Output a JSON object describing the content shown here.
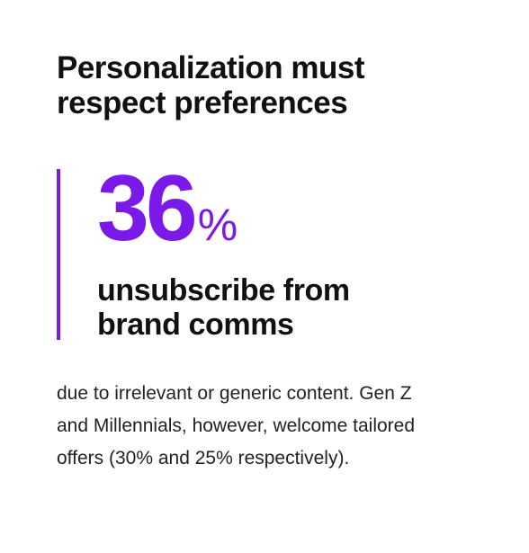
{
  "header": {
    "title": "Personalization must respect preferences"
  },
  "stat": {
    "value": "36",
    "unit": "%",
    "label": "unsubscribe from brand comms"
  },
  "body": {
    "text": "due to irrelevant or generic content. Gen Z and Millennials, however, welcome tailored offers (30% and 25% respectively)."
  }
}
